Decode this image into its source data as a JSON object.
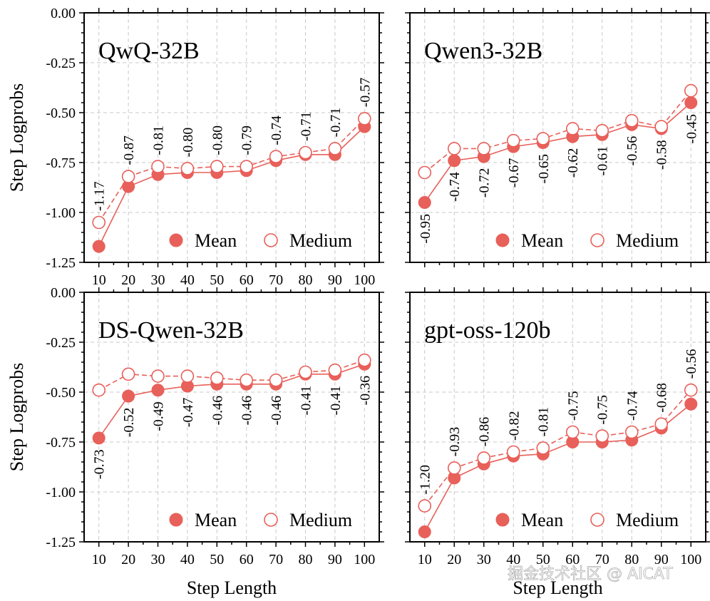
{
  "colors": {
    "series": "#e8605a",
    "text": "#000000",
    "grid": "#c8c8c8"
  },
  "watermark": "掘金技术社区 @ AICAT",
  "chart_data": [
    {
      "type": "line",
      "title": "QwQ-32B",
      "xlabel": "",
      "ylabel": "Step Logprobs",
      "x": [
        10,
        20,
        30,
        40,
        50,
        60,
        70,
        80,
        90,
        100
      ],
      "ylim": [
        -1.25,
        0.0
      ],
      "yticks": [
        "0.00",
        "-0.25",
        "-0.50",
        "-0.75",
        "-1.00",
        "-1.25"
      ],
      "xticks": [
        "10",
        "20",
        "30",
        "40",
        "50",
        "60",
        "70",
        "80",
        "90",
        "100"
      ],
      "grid": true,
      "legend": {
        "placement": "lower-right",
        "entries": [
          "Mean",
          "Medium"
        ]
      },
      "label_position": "above",
      "series": [
        {
          "name": "Mean",
          "marker": "filled-circle",
          "line": "solid",
          "values": [
            -1.17,
            -0.87,
            -0.81,
            -0.8,
            -0.8,
            -0.79,
            -0.74,
            -0.71,
            -0.71,
            -0.57
          ]
        },
        {
          "name": "Medium",
          "marker": "open-circle",
          "line": "dashed",
          "values": [
            -1.05,
            -0.82,
            -0.77,
            -0.78,
            -0.77,
            -0.77,
            -0.72,
            -0.7,
            -0.68,
            -0.53
          ]
        }
      ],
      "data_labels": [
        "-1.17",
        "-0.87",
        "-0.81",
        "-0.80",
        "-0.80",
        "-0.79",
        "-0.74",
        "-0.71",
        "-0.71",
        "-0.57"
      ]
    },
    {
      "type": "line",
      "title": "Qwen3-32B",
      "xlabel": "",
      "ylabel": "",
      "x": [
        10,
        20,
        30,
        40,
        50,
        60,
        70,
        80,
        90,
        100
      ],
      "ylim": [
        -1.25,
        0.0
      ],
      "yticks": [],
      "xticks": [],
      "grid": true,
      "legend": {
        "placement": "lower-right",
        "entries": [
          "Mean",
          "Medium"
        ]
      },
      "label_position": "below",
      "series": [
        {
          "name": "Mean",
          "marker": "filled-circle",
          "line": "solid",
          "values": [
            -0.95,
            -0.74,
            -0.72,
            -0.67,
            -0.65,
            -0.62,
            -0.61,
            -0.56,
            -0.58,
            -0.45
          ]
        },
        {
          "name": "Medium",
          "marker": "open-circle",
          "line": "dashed",
          "values": [
            -0.8,
            -0.68,
            -0.68,
            -0.64,
            -0.63,
            -0.58,
            -0.59,
            -0.54,
            -0.57,
            -0.39
          ]
        }
      ],
      "data_labels": [
        "-0.95",
        "-0.74",
        "-0.72",
        "-0.67",
        "-0.65",
        "-0.62",
        "-0.61",
        "-0.56",
        "-0.58",
        "-0.45"
      ]
    },
    {
      "type": "line",
      "title": "DS-Qwen-32B",
      "xlabel": "Step Length",
      "ylabel": "Step Logprobs",
      "x": [
        10,
        20,
        30,
        40,
        50,
        60,
        70,
        80,
        90,
        100
      ],
      "ylim": [
        -1.25,
        0.0
      ],
      "yticks": [
        "0.00",
        "-0.25",
        "-0.50",
        "-0.75",
        "-1.00",
        "-1.25"
      ],
      "xticks": [
        "10",
        "20",
        "30",
        "40",
        "50",
        "60",
        "70",
        "80",
        "90",
        "100"
      ],
      "grid": true,
      "legend": {
        "placement": "lower-right",
        "entries": [
          "Mean",
          "Medium"
        ]
      },
      "label_position": "below",
      "series": [
        {
          "name": "Mean",
          "marker": "filled-circle",
          "line": "solid",
          "values": [
            -0.73,
            -0.52,
            -0.49,
            -0.47,
            -0.46,
            -0.46,
            -0.46,
            -0.41,
            -0.41,
            -0.36
          ]
        },
        {
          "name": "Medium",
          "marker": "open-circle",
          "line": "dashed",
          "values": [
            -0.49,
            -0.41,
            -0.42,
            -0.42,
            -0.43,
            -0.44,
            -0.44,
            -0.4,
            -0.39,
            -0.34
          ]
        }
      ],
      "data_labels": [
        "-0.73",
        "-0.52",
        "-0.49",
        "-0.47",
        "-0.46",
        "-0.46",
        "-0.46",
        "-0.41",
        "-0.41",
        "-0.36"
      ]
    },
    {
      "type": "line",
      "title": "gpt-oss-120b",
      "xlabel": "Step Length",
      "ylabel": "",
      "x": [
        10,
        20,
        30,
        40,
        50,
        60,
        70,
        80,
        90,
        100
      ],
      "ylim": [
        -1.25,
        0.0
      ],
      "yticks": [],
      "xticks": [
        "10",
        "20",
        "30",
        "40",
        "50",
        "60",
        "70",
        "80",
        "90",
        "100"
      ],
      "grid": true,
      "legend": {
        "placement": "lower-right",
        "entries": [
          "Mean",
          "Medium"
        ]
      },
      "label_position": "above",
      "series": [
        {
          "name": "Mean",
          "marker": "filled-circle",
          "line": "solid",
          "values": [
            -1.2,
            -0.93,
            -0.86,
            -0.82,
            -0.81,
            -0.75,
            -0.75,
            -0.74,
            -0.68,
            -0.56
          ]
        },
        {
          "name": "Medium",
          "marker": "open-circle",
          "line": "dashed",
          "values": [
            -1.07,
            -0.88,
            -0.83,
            -0.8,
            -0.78,
            -0.7,
            -0.72,
            -0.7,
            -0.66,
            -0.49
          ]
        }
      ],
      "data_labels": [
        "-1.20",
        "-0.93",
        "-0.86",
        "-0.82",
        "-0.81",
        "-0.75",
        "-0.75",
        "-0.74",
        "-0.68",
        "-0.56"
      ]
    }
  ]
}
